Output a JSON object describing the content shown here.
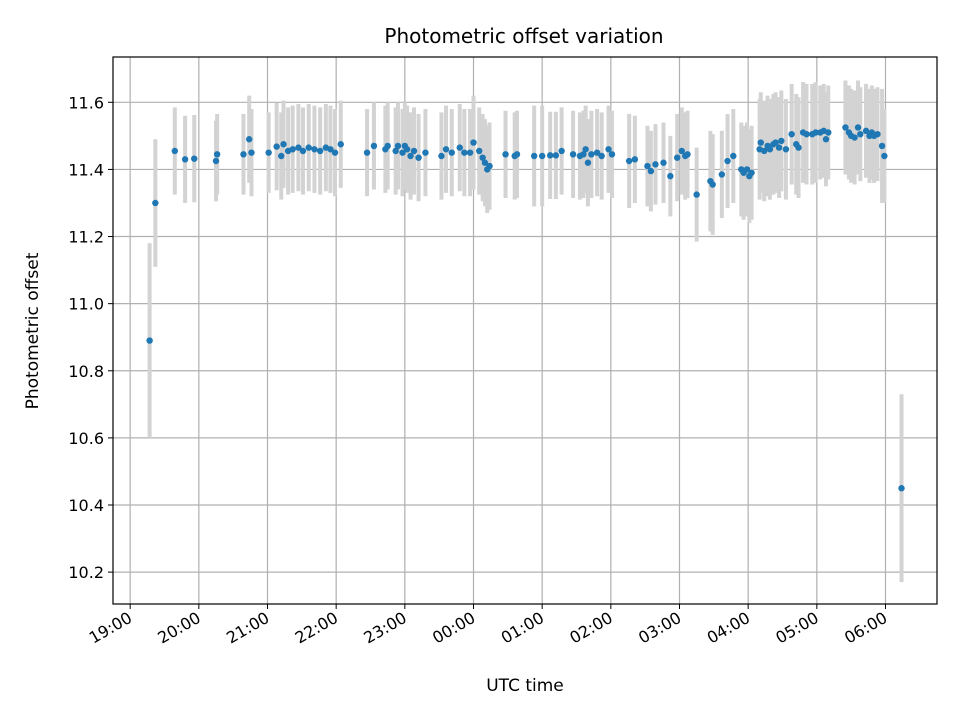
{
  "chart_data": {
    "type": "scatter",
    "title": "Photometric offset variation",
    "xlabel": "UTC time",
    "ylabel": "Photometric offset",
    "x_axis": {
      "kind": "time",
      "start": "19:00",
      "range_hours": [
        -0.25,
        11.75
      ],
      "ticks": [
        {
          "hour": 0,
          "label": "19:00"
        },
        {
          "hour": 1,
          "label": "20:00"
        },
        {
          "hour": 2,
          "label": "21:00"
        },
        {
          "hour": 3,
          "label": "22:00"
        },
        {
          "hour": 4,
          "label": "23:00"
        },
        {
          "hour": 5,
          "label": "00:00"
        },
        {
          "hour": 6,
          "label": "01:00"
        },
        {
          "hour": 7,
          "label": "02:00"
        },
        {
          "hour": 8,
          "label": "03:00"
        },
        {
          "hour": 9,
          "label": "04:00"
        },
        {
          "hour": 10,
          "label": "05:00"
        },
        {
          "hour": 11,
          "label": "06:00"
        }
      ]
    },
    "y_axis": {
      "range": [
        10.105,
        11.735
      ],
      "ticks": [
        10.2,
        10.4,
        10.6,
        10.8,
        11.0,
        11.2,
        11.4,
        11.6
      ],
      "tick_labels": [
        "10.2",
        "10.4",
        "10.6",
        "10.8",
        "11.0",
        "11.2",
        "11.4",
        "11.6"
      ]
    },
    "grid": true,
    "marker_color": "#1f77b4",
    "errorbar_color": "#d3d3d3",
    "points": [
      [
        "19:17",
        10.89,
        0.29
      ],
      [
        "19:22",
        11.3,
        0.19
      ],
      [
        "19:39",
        11.455,
        0.13
      ],
      [
        "19:48",
        11.43,
        0.13
      ],
      [
        "19:56",
        11.432,
        0.13
      ],
      [
        "20:15",
        11.425,
        0.12
      ],
      [
        "20:16",
        11.445,
        0.12
      ],
      [
        "20:39",
        11.445,
        0.12
      ],
      [
        "20:44",
        11.49,
        0.13
      ],
      [
        "20:46",
        11.45,
        0.13
      ],
      [
        "21:01",
        11.45,
        0.12
      ],
      [
        "21:08",
        11.468,
        0.13
      ],
      [
        "21:12",
        11.44,
        0.13
      ],
      [
        "21:14",
        11.475,
        0.13
      ],
      [
        "21:18",
        11.455,
        0.13
      ],
      [
        "21:22",
        11.46,
        0.13
      ],
      [
        "21:27",
        11.465,
        0.13
      ],
      [
        "21:31",
        11.455,
        0.13
      ],
      [
        "21:36",
        11.465,
        0.13
      ],
      [
        "21:41",
        11.46,
        0.13
      ],
      [
        "21:46",
        11.455,
        0.13
      ],
      [
        "21:51",
        11.465,
        0.13
      ],
      [
        "21:55",
        11.46,
        0.13
      ],
      [
        "21:59",
        11.45,
        0.13
      ],
      [
        "22:04",
        11.475,
        0.13
      ],
      [
        "22:27",
        11.45,
        0.13
      ],
      [
        "22:33",
        11.47,
        0.13
      ],
      [
        "22:43",
        11.46,
        0.13
      ],
      [
        "22:45",
        11.47,
        0.13
      ],
      [
        "22:52",
        11.455,
        0.13
      ],
      [
        "22:54",
        11.47,
        0.13
      ],
      [
        "22:58",
        11.45,
        0.13
      ],
      [
        "23:00",
        11.47,
        0.13
      ],
      [
        "23:02",
        11.46,
        0.13
      ],
      [
        "23:05",
        11.44,
        0.13
      ],
      [
        "23:08",
        11.455,
        0.13
      ],
      [
        "23:12",
        11.435,
        0.13
      ],
      [
        "23:18",
        11.45,
        0.13
      ],
      [
        "23:32",
        11.44,
        0.13
      ],
      [
        "23:36",
        11.46,
        0.13
      ],
      [
        "23:41",
        11.45,
        0.13
      ],
      [
        "23:48",
        11.465,
        0.13
      ],
      [
        "23:52",
        11.45,
        0.13
      ],
      [
        "23:57",
        11.45,
        0.13
      ],
      [
        "00:00",
        11.48,
        0.14
      ],
      [
        "00:05",
        11.455,
        0.13
      ],
      [
        "00:08",
        11.435,
        0.13
      ],
      [
        "00:10",
        11.42,
        0.13
      ],
      [
        "00:12",
        11.4,
        0.13
      ],
      [
        "00:14",
        11.41,
        0.13
      ],
      [
        "00:28",
        11.445,
        0.13
      ],
      [
        "00:36",
        11.44,
        0.13
      ],
      [
        "00:38",
        11.445,
        0.13
      ],
      [
        "00:53",
        11.44,
        0.15
      ],
      [
        "01:00",
        11.44,
        0.15
      ],
      [
        "01:07",
        11.442,
        0.13
      ],
      [
        "01:12",
        11.442,
        0.13
      ],
      [
        "01:17",
        11.455,
        0.13
      ],
      [
        "01:27",
        11.445,
        0.13
      ],
      [
        "01:33",
        11.44,
        0.13
      ],
      [
        "01:36",
        11.445,
        0.13
      ],
      [
        "01:38",
        11.46,
        0.13
      ],
      [
        "01:40",
        11.42,
        0.13
      ],
      [
        "01:43",
        11.445,
        0.13
      ],
      [
        "01:48",
        11.45,
        0.13
      ],
      [
        "01:52",
        11.44,
        0.13
      ],
      [
        "01:58",
        11.46,
        0.13
      ],
      [
        "02:01",
        11.445,
        0.13
      ],
      [
        "02:16",
        11.425,
        0.14
      ],
      [
        "02:21",
        11.43,
        0.13
      ],
      [
        "02:32",
        11.41,
        0.12
      ],
      [
        "02:35",
        11.395,
        0.12
      ],
      [
        "02:39",
        11.415,
        0.12
      ],
      [
        "02:46",
        11.42,
        0.12
      ],
      [
        "02:52",
        11.38,
        0.12
      ],
      [
        "02:58",
        11.435,
        0.13
      ],
      [
        "03:02",
        11.455,
        0.13
      ],
      [
        "03:05",
        11.44,
        0.13
      ],
      [
        "03:07",
        11.445,
        0.13
      ],
      [
        "03:15",
        11.325,
        0.14
      ],
      [
        "03:27",
        11.365,
        0.15
      ],
      [
        "03:29",
        11.355,
        0.15
      ],
      [
        "03:37",
        11.385,
        0.13
      ],
      [
        "03:42",
        11.425,
        0.14
      ],
      [
        "03:47",
        11.44,
        0.14
      ],
      [
        "03:54",
        11.4,
        0.14
      ],
      [
        "03:56",
        11.39,
        0.14
      ],
      [
        "03:59",
        11.4,
        0.14
      ],
      [
        "04:01",
        11.38,
        0.14
      ],
      [
        "04:03",
        11.39,
        0.14
      ],
      [
        "04:10",
        11.46,
        0.15
      ],
      [
        "04:11",
        11.48,
        0.15
      ],
      [
        "04:14",
        11.455,
        0.15
      ],
      [
        "04:17",
        11.47,
        0.15
      ],
      [
        "04:19",
        11.46,
        0.15
      ],
      [
        "04:22",
        11.475,
        0.15
      ],
      [
        "04:24",
        11.48,
        0.15
      ],
      [
        "04:27",
        11.465,
        0.15
      ],
      [
        "04:29",
        11.485,
        0.15
      ],
      [
        "04:33",
        11.46,
        0.15
      ],
      [
        "04:38",
        11.505,
        0.15
      ],
      [
        "04:42",
        11.475,
        0.15
      ],
      [
        "04:44",
        11.465,
        0.15
      ],
      [
        "04:48",
        11.51,
        0.15
      ],
      [
        "04:51",
        11.505,
        0.15
      ],
      [
        "04:56",
        11.505,
        0.15
      ],
      [
        "04:59",
        11.51,
        0.15
      ],
      [
        "05:03",
        11.51,
        0.14
      ],
      [
        "05:06",
        11.515,
        0.14
      ],
      [
        "05:08",
        11.49,
        0.14
      ],
      [
        "05:10",
        11.51,
        0.14
      ],
      [
        "05:25",
        11.525,
        0.14
      ],
      [
        "05:28",
        11.51,
        0.14
      ],
      [
        "05:30",
        11.5,
        0.14
      ],
      [
        "05:33",
        11.495,
        0.14
      ],
      [
        "05:36",
        11.525,
        0.14
      ],
      [
        "05:38",
        11.505,
        0.14
      ],
      [
        "05:43",
        11.515,
        0.14
      ],
      [
        "05:46",
        11.5,
        0.14
      ],
      [
        "05:48",
        11.51,
        0.14
      ],
      [
        "05:50",
        11.5,
        0.14
      ],
      [
        "05:53",
        11.505,
        0.14
      ],
      [
        "05:57",
        11.47,
        0.17
      ],
      [
        "05:59",
        11.44,
        0.14
      ],
      [
        "06:14",
        10.45,
        0.28
      ]
    ]
  }
}
